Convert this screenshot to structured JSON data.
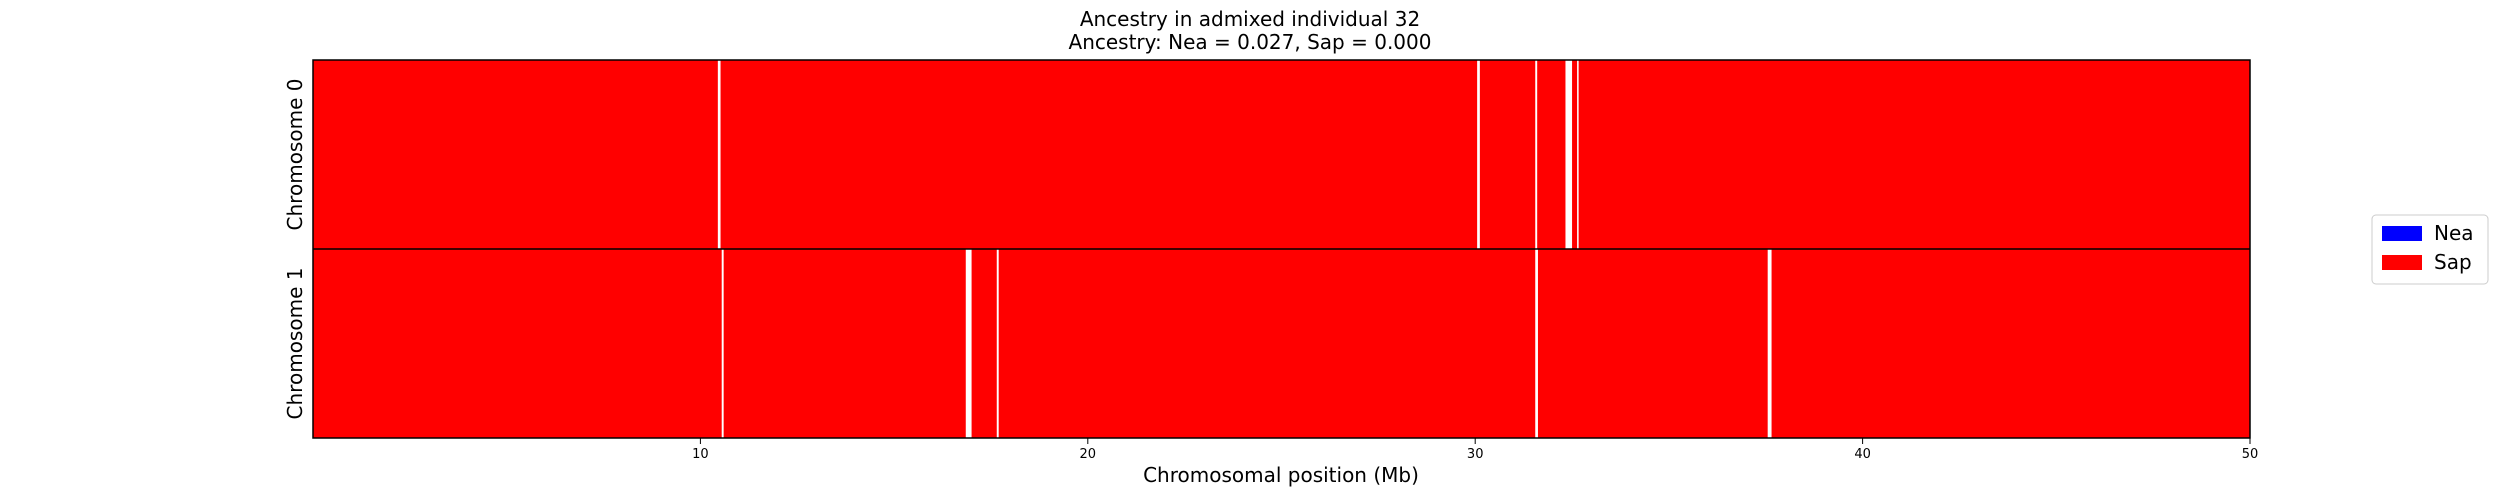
{
  "chart_data": {
    "type": "heatmap",
    "title": "Ancestry in admixed individual 32",
    "subtitle": "Ancestry: Nea = 0.027, Sap = 0.000",
    "xlabel": "Chromosomal position (Mb)",
    "xlim": [
      0,
      50
    ],
    "xticks": [
      10,
      20,
      30,
      40,
      50
    ],
    "xtick_labels": [
      "10",
      "20",
      "30",
      "40",
      "50"
    ],
    "grid": false,
    "legend_placement": "center-right",
    "legend": [
      {
        "name": "Nea",
        "color": "#0000ff"
      },
      {
        "name": "Sap",
        "color": "#ff0000"
      }
    ],
    "background_color": "#ff0000",
    "rows": [
      {
        "label": "Chromosome 0",
        "gaps": [
          {
            "start": 10.45,
            "end": 10.52
          },
          {
            "start": 30.05,
            "end": 30.12
          },
          {
            "start": 31.55,
            "end": 31.6
          },
          {
            "start": 32.33,
            "end": 32.5
          },
          {
            "start": 32.63,
            "end": 32.67
          }
        ]
      },
      {
        "label": "Chromosome 1",
        "gaps": [
          {
            "start": 10.55,
            "end": 10.6
          },
          {
            "start": 16.85,
            "end": 17.0
          },
          {
            "start": 17.65,
            "end": 17.7
          },
          {
            "start": 31.55,
            "end": 31.62
          },
          {
            "start": 37.55,
            "end": 37.65
          }
        ]
      }
    ]
  }
}
